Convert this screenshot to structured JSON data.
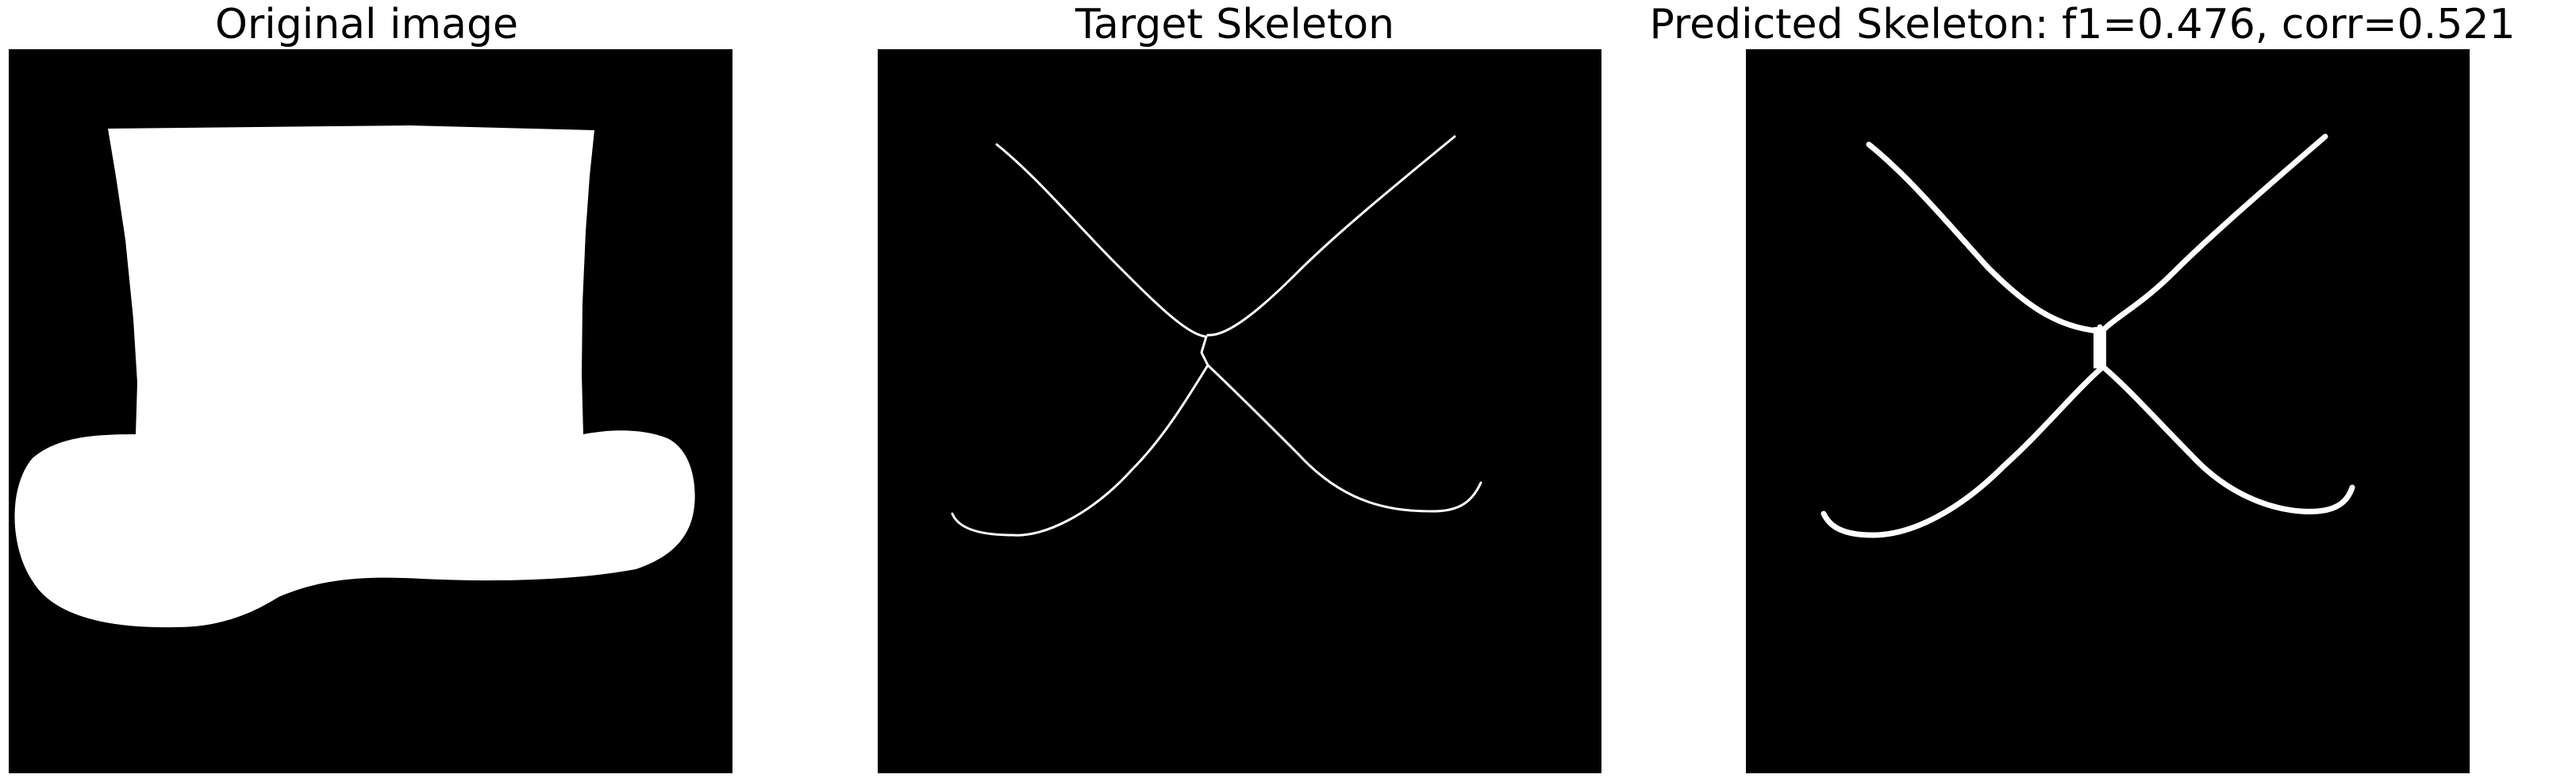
{
  "figure": {
    "panels": [
      {
        "title": "Original image",
        "content": "binary silhouette of a top hat (white on black)"
      },
      {
        "title": "Target Skeleton",
        "content": "thin white skeleton curves on black"
      },
      {
        "title": "Predicted Skeleton: f1=0.476, corr=0.521",
        "content": "thicker white predicted skeleton curves on black"
      }
    ],
    "colors": {
      "background": "#000000",
      "foreground": "#ffffff",
      "page": "#ffffff"
    }
  }
}
